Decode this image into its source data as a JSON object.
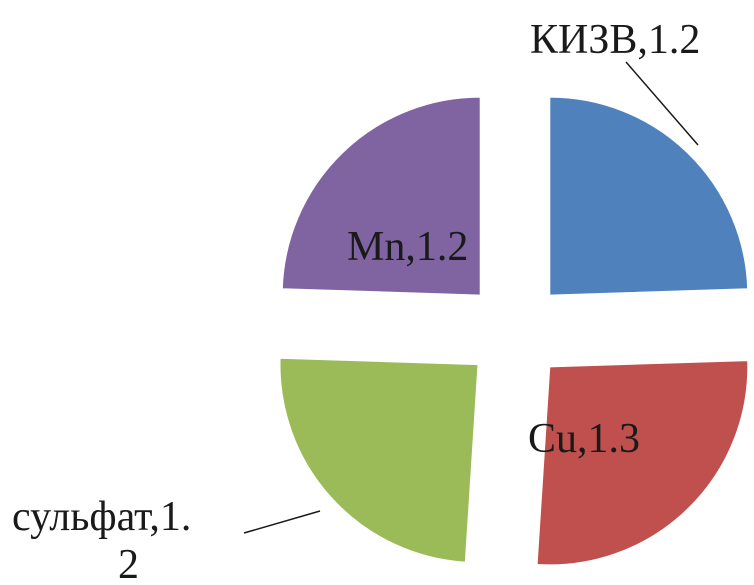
{
  "chart_data": {
    "type": "pie",
    "title": "",
    "exploded": true,
    "slices": [
      {
        "label": "КИЗВ",
        "value": 1.2,
        "color": "#4F81BD",
        "data_label": "КИЗВ,1.2"
      },
      {
        "label": "Cu",
        "value": 1.3,
        "color": "#C0504D",
        "data_label": "Cu,1.3"
      },
      {
        "label": "сульфат",
        "value": 1.2,
        "color": "#9BBB59",
        "data_label_line1": "сульфат,1.",
        "data_label_line2": "2"
      },
      {
        "label": "Mn",
        "value": 1.2,
        "color": "#8064A2",
        "data_label": "Mn,1.2"
      }
    ]
  }
}
